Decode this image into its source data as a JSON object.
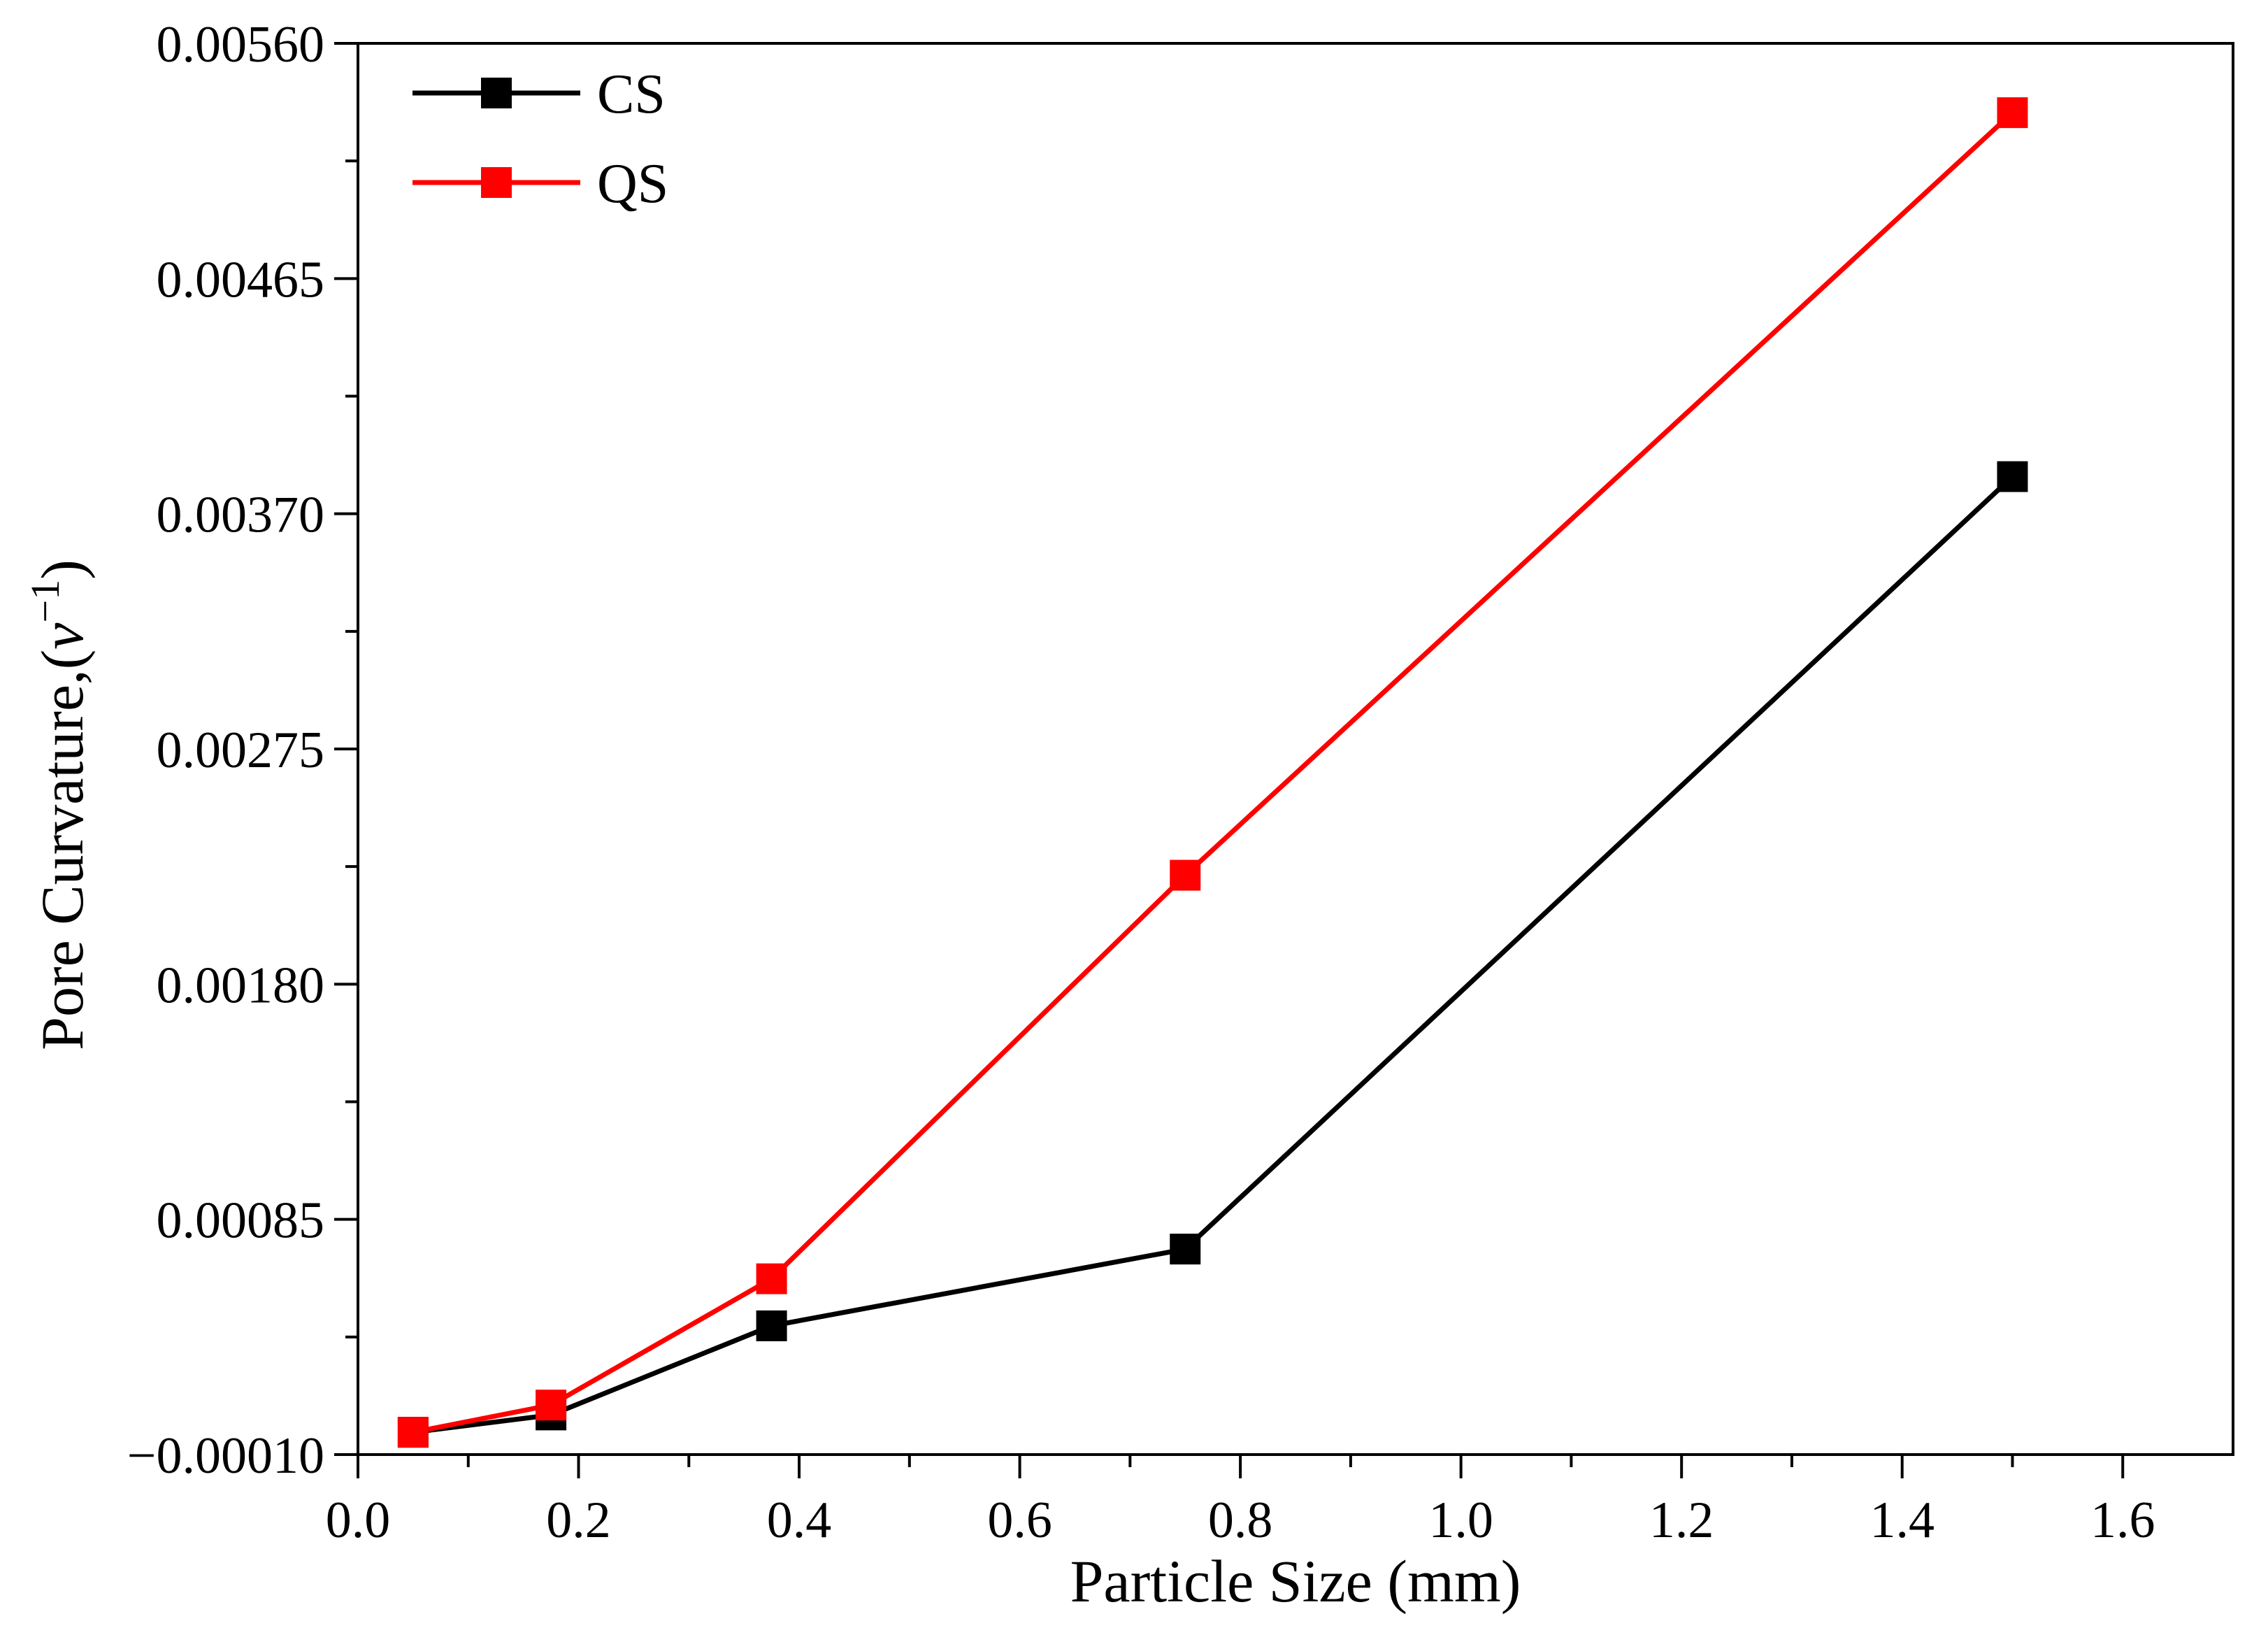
{
  "chart_data": {
    "type": "line",
    "title": "",
    "xlabel": "Particle Size (mm)",
    "ylabel_prefix": "Pore Curvature,(",
    "ylabel_var": "v",
    "ylabel_exp": "−1",
    "ylabel_suffix": ")",
    "xlim": [
      0.0,
      1.7
    ],
    "ylim": [
      -0.0001,
      0.0056
    ],
    "x_ticks": [
      0.0,
      0.2,
      0.4,
      0.6,
      0.8,
      1.0,
      1.2,
      1.4,
      1.6
    ],
    "x_tick_labels": [
      "0.0",
      "0.2",
      "0.4",
      "0.6",
      "0.8",
      "1.0",
      "1.2",
      "1.4",
      "1.6"
    ],
    "y_ticks": [
      -0.0001,
      0.00085,
      0.0018,
      0.00275,
      0.0037,
      0.00465,
      0.0056
    ],
    "y_tick_labels": [
      "−0.00010",
      "0.00085",
      "0.00180",
      "0.00275",
      "0.00370",
      "0.00465",
      "0.00560"
    ],
    "grid": false,
    "legend_position": "top-left",
    "series": [
      {
        "name": "CS",
        "color": "#000000",
        "marker": "square",
        "x": [
          0.05,
          0.175,
          0.375,
          0.75,
          1.5
        ],
        "y": [
          -1e-05,
          6e-05,
          0.00042,
          0.00073,
          0.00385
        ]
      },
      {
        "name": "QS",
        "color": "#ff0000",
        "marker": "square",
        "x": [
          0.05,
          0.175,
          0.375,
          0.75,
          1.5
        ],
        "y": [
          -1e-05,
          0.0001,
          0.00061,
          0.00224,
          0.00532
        ]
      }
    ]
  }
}
